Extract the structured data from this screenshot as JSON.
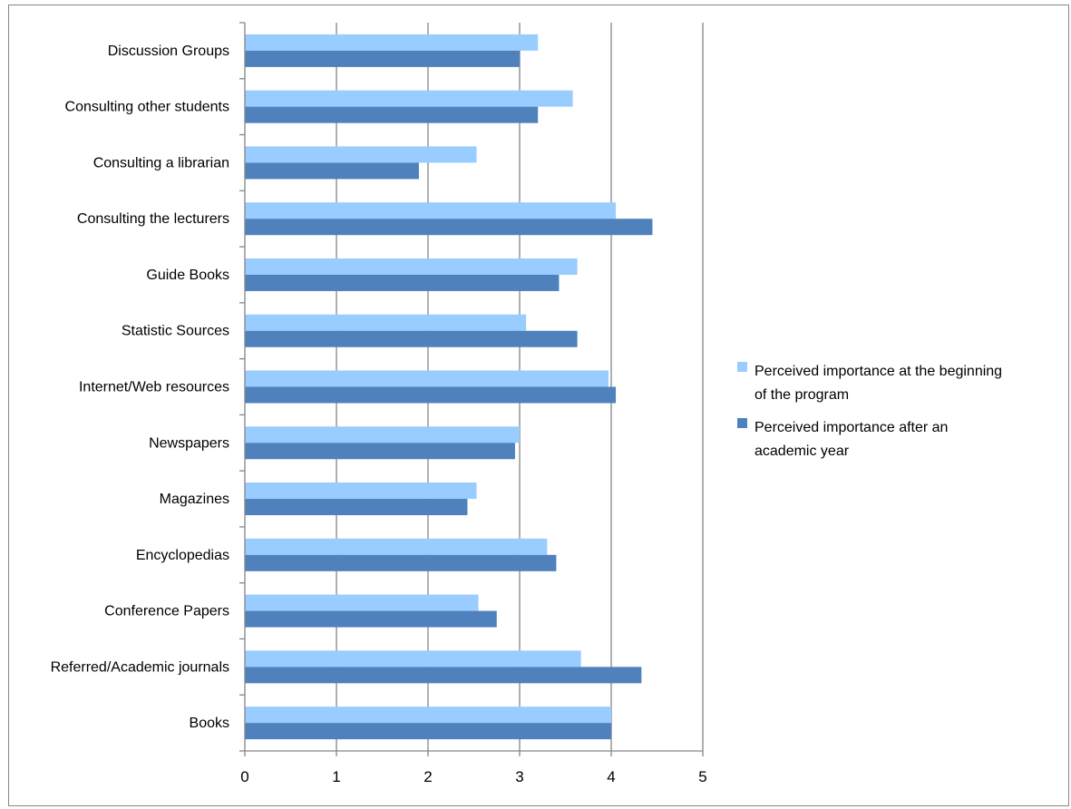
{
  "chart_data": {
    "type": "bar",
    "orientation": "horizontal",
    "title": "",
    "xlabel": "",
    "ylabel": "",
    "xlim": [
      0,
      5
    ],
    "x_ticks": [
      "0",
      "1",
      "2",
      "3",
      "4",
      "5"
    ],
    "grid": "vertical",
    "legend_position": "right",
    "categories": [
      "Discussion Groups",
      "Consulting other students",
      "Consulting a librarian",
      "Consulting the lecturers",
      "Guide Books",
      "Statistic Sources",
      "Internet/Web resources",
      "Newspapers",
      "Magazines",
      "Encyclopedias",
      "Conference Papers",
      "Referred/Academic journals",
      "Books"
    ],
    "series": [
      {
        "name": "Perceived importance at the beginning of the program",
        "legend_lines": [
          "Perceived importance at the beginning",
          "of the program"
        ],
        "color": "#99ccff",
        "values": [
          3.2,
          3.58,
          2.53,
          4.05,
          3.63,
          3.07,
          3.97,
          3.0,
          2.53,
          3.3,
          2.55,
          3.67,
          4.0
        ]
      },
      {
        "name": "Perceived importance after an academic year",
        "legend_lines": [
          "Perceived importance after an",
          "academic year"
        ],
        "color": "#4f81bd",
        "values": [
          3.0,
          3.2,
          1.9,
          4.45,
          3.43,
          3.63,
          4.05,
          2.95,
          2.43,
          3.4,
          2.75,
          4.33,
          4.0
        ]
      }
    ]
  }
}
